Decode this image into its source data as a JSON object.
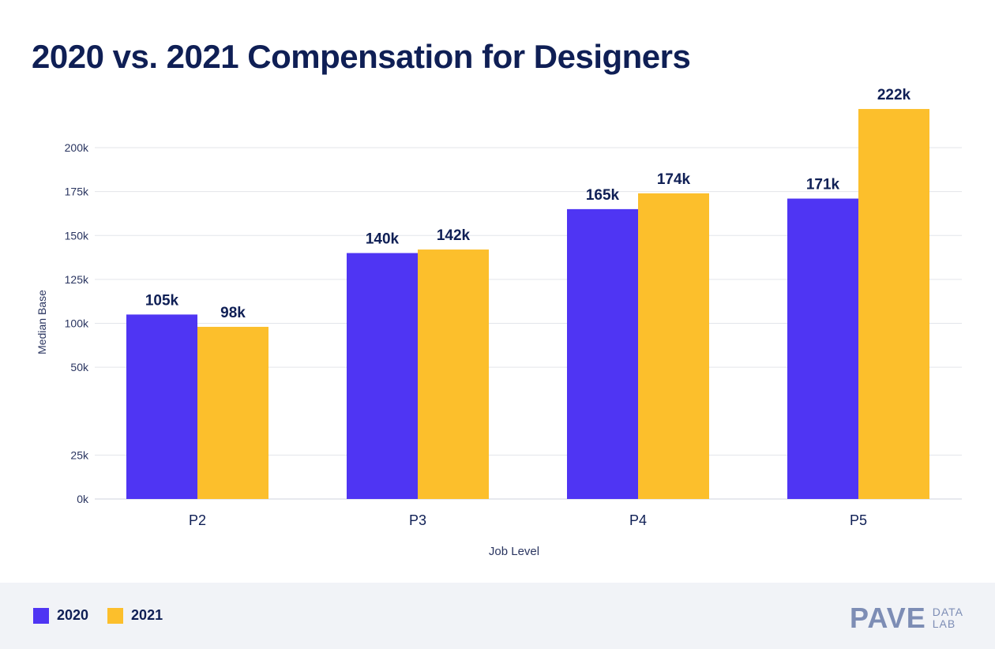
{
  "title": "2020 vs. 2021 Compensation for Designers",
  "colors": {
    "series_2020": "#4f35f3",
    "series_2021": "#fcbf2c",
    "grid": "#e3e5ea",
    "text_dark": "#0f1f55",
    "axis_text": "#2a3560"
  },
  "legend": [
    {
      "label": "2020",
      "color": "#4f35f3"
    },
    {
      "label": "2021",
      "color": "#fcbf2c"
    }
  ],
  "brand": {
    "main": "PAVE",
    "sub_top": "DATA",
    "sub_bottom": "LAB"
  },
  "chart_data": {
    "type": "bar",
    "categories": [
      "P2",
      "P3",
      "P4",
      "P5"
    ],
    "series": [
      {
        "name": "2020",
        "values": [
          105,
          140,
          165,
          171
        ],
        "labels": [
          "105k",
          "140k",
          "165k",
          "171k"
        ],
        "color": "#4f35f3"
      },
      {
        "name": "2021",
        "values": [
          98,
          142,
          174,
          222
        ],
        "labels": [
          "98k",
          "142k",
          "174k",
          "222k"
        ],
        "color": "#fcbf2c"
      }
    ],
    "xlabel": "Job Level",
    "ylabel": "Median Base",
    "yticks": [
      {
        "value": 0,
        "label": "0k"
      },
      {
        "value": 25,
        "label": "25k"
      },
      {
        "value": 50,
        "label": "50k"
      },
      {
        "value": 100,
        "label": "100k"
      },
      {
        "value": 125,
        "label": "125k"
      },
      {
        "value": 150,
        "label": "150k"
      },
      {
        "value": 175,
        "label": "175k"
      },
      {
        "value": 200,
        "label": "200k"
      }
    ],
    "grid": true,
    "legend_position": "bottom-left"
  }
}
